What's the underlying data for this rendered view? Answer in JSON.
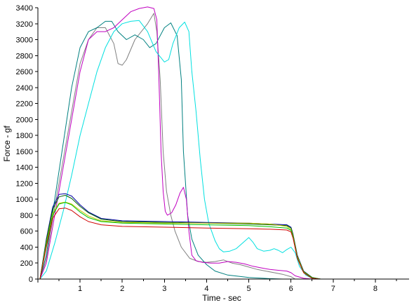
{
  "chart_data": {
    "type": "line",
    "title": "",
    "xlabel": "Time - sec",
    "ylabel": "Force - gf",
    "xlim": [
      0,
      8.8
    ],
    "ylim": [
      0,
      3400
    ],
    "xticks": [
      1,
      2,
      3,
      4,
      5,
      6,
      7,
      8
    ],
    "yticks": [
      0,
      200,
      400,
      600,
      800,
      1000,
      1200,
      1400,
      1600,
      1800,
      2000,
      2200,
      2400,
      2600,
      2800,
      3000,
      3200,
      3400
    ],
    "grid": false,
    "series": [
      {
        "color": "#808080",
        "points": [
          [
            0.05,
            0
          ],
          [
            0.2,
            250
          ],
          [
            0.4,
            900
          ],
          [
            0.6,
            1500
          ],
          [
            0.8,
            2100
          ],
          [
            1.0,
            2700
          ],
          [
            1.2,
            3000
          ],
          [
            1.4,
            3150
          ],
          [
            1.6,
            3150
          ],
          [
            1.8,
            2950
          ],
          [
            1.9,
            2700
          ],
          [
            2.0,
            2680
          ],
          [
            2.1,
            2750
          ],
          [
            2.3,
            3000
          ],
          [
            2.6,
            3200
          ],
          [
            2.75,
            3330
          ],
          [
            2.82,
            3100
          ],
          [
            2.9,
            2500
          ],
          [
            2.97,
            1600
          ],
          [
            3.05,
            1100
          ],
          [
            3.15,
            800
          ],
          [
            3.25,
            600
          ],
          [
            3.4,
            400
          ],
          [
            3.6,
            260
          ],
          [
            3.8,
            220
          ],
          [
            4.0,
            210
          ],
          [
            4.2,
            220
          ],
          [
            4.4,
            240
          ],
          [
            4.6,
            200
          ],
          [
            4.8,
            180
          ],
          [
            5.0,
            150
          ],
          [
            5.2,
            120
          ],
          [
            5.4,
            100
          ],
          [
            5.6,
            80
          ],
          [
            5.8,
            60
          ],
          [
            6.0,
            30
          ],
          [
            6.1,
            0
          ]
        ]
      },
      {
        "color": "#008080",
        "points": [
          [
            0.05,
            0
          ],
          [
            0.2,
            300
          ],
          [
            0.4,
            1000
          ],
          [
            0.6,
            1700
          ],
          [
            0.8,
            2400
          ],
          [
            1.0,
            2900
          ],
          [
            1.2,
            3100
          ],
          [
            1.4,
            3150
          ],
          [
            1.6,
            3230
          ],
          [
            1.75,
            3230
          ],
          [
            1.9,
            3100
          ],
          [
            2.1,
            3000
          ],
          [
            2.3,
            3060
          ],
          [
            2.5,
            3000
          ],
          [
            2.65,
            2900
          ],
          [
            2.8,
            2950
          ],
          [
            3.0,
            3150
          ],
          [
            3.15,
            3210
          ],
          [
            3.3,
            3050
          ],
          [
            3.4,
            2500
          ],
          [
            3.45,
            1600
          ],
          [
            3.55,
            800
          ],
          [
            3.65,
            500
          ],
          [
            3.8,
            300
          ],
          [
            4.0,
            180
          ],
          [
            4.2,
            100
          ],
          [
            4.5,
            50
          ],
          [
            5.0,
            20
          ],
          [
            5.5,
            5
          ],
          [
            5.8,
            0
          ]
        ]
      },
      {
        "color": "#C000C0",
        "points": [
          [
            0.05,
            0
          ],
          [
            0.2,
            200
          ],
          [
            0.4,
            800
          ],
          [
            0.6,
            1400
          ],
          [
            0.8,
            2000
          ],
          [
            1.0,
            2600
          ],
          [
            1.2,
            3000
          ],
          [
            1.4,
            3100
          ],
          [
            1.6,
            3100
          ],
          [
            1.8,
            3150
          ],
          [
            2.0,
            3250
          ],
          [
            2.2,
            3350
          ],
          [
            2.4,
            3390
          ],
          [
            2.6,
            3410
          ],
          [
            2.75,
            3390
          ],
          [
            2.82,
            3250
          ],
          [
            2.87,
            2500
          ],
          [
            2.92,
            1600
          ],
          [
            2.97,
            1100
          ],
          [
            3.02,
            850
          ],
          [
            3.07,
            800
          ],
          [
            3.17,
            830
          ],
          [
            3.27,
            930
          ],
          [
            3.37,
            1080
          ],
          [
            3.45,
            1150
          ],
          [
            3.52,
            1000
          ],
          [
            3.58,
            600
          ],
          [
            3.65,
            300
          ],
          [
            3.75,
            230
          ],
          [
            3.9,
            210
          ],
          [
            4.1,
            200
          ],
          [
            4.3,
            200
          ],
          [
            4.5,
            220
          ],
          [
            4.7,
            210
          ],
          [
            4.9,
            190
          ],
          [
            5.1,
            160
          ],
          [
            5.3,
            140
          ],
          [
            5.5,
            120
          ],
          [
            5.7,
            110
          ],
          [
            5.9,
            100
          ],
          [
            6.0,
            80
          ],
          [
            6.1,
            40
          ],
          [
            6.3,
            10
          ],
          [
            6.5,
            0
          ]
        ]
      },
      {
        "color": "#00E0E0",
        "points": [
          [
            0.05,
            0
          ],
          [
            0.2,
            100
          ],
          [
            0.4,
            450
          ],
          [
            0.6,
            850
          ],
          [
            0.8,
            1300
          ],
          [
            1.0,
            1800
          ],
          [
            1.2,
            2200
          ],
          [
            1.4,
            2600
          ],
          [
            1.6,
            2900
          ],
          [
            1.8,
            3100
          ],
          [
            2.0,
            3200
          ],
          [
            2.2,
            3230
          ],
          [
            2.4,
            3240
          ],
          [
            2.6,
            3100
          ],
          [
            2.8,
            2850
          ],
          [
            3.0,
            2720
          ],
          [
            3.1,
            2750
          ],
          [
            3.2,
            2950
          ],
          [
            3.35,
            3150
          ],
          [
            3.48,
            3220
          ],
          [
            3.58,
            3100
          ],
          [
            3.65,
            2600
          ],
          [
            3.75,
            2100
          ],
          [
            3.85,
            1500
          ],
          [
            3.95,
            1000
          ],
          [
            4.05,
            700
          ],
          [
            4.2,
            480
          ],
          [
            4.3,
            380
          ],
          [
            4.4,
            340
          ],
          [
            4.55,
            350
          ],
          [
            4.7,
            380
          ],
          [
            4.85,
            450
          ],
          [
            5.0,
            520
          ],
          [
            5.1,
            460
          ],
          [
            5.2,
            380
          ],
          [
            5.35,
            350
          ],
          [
            5.5,
            360
          ],
          [
            5.6,
            380
          ],
          [
            5.7,
            360
          ],
          [
            5.8,
            330
          ],
          [
            5.9,
            370
          ],
          [
            6.0,
            400
          ],
          [
            6.1,
            330
          ],
          [
            6.2,
            160
          ],
          [
            6.35,
            50
          ],
          [
            6.5,
            10
          ],
          [
            6.7,
            0
          ]
        ]
      },
      {
        "color": "#0000A0",
        "points": [
          [
            0.05,
            0
          ],
          [
            0.2,
            500
          ],
          [
            0.35,
            900
          ],
          [
            0.5,
            1060
          ],
          [
            0.65,
            1070
          ],
          [
            0.8,
            1040
          ],
          [
            1.0,
            930
          ],
          [
            1.2,
            840
          ],
          [
            1.5,
            760
          ],
          [
            2.0,
            730
          ],
          [
            3.0,
            720
          ],
          [
            4.0,
            710
          ],
          [
            5.0,
            700
          ],
          [
            5.5,
            690
          ],
          [
            5.9,
            680
          ],
          [
            6.0,
            650
          ],
          [
            6.05,
            560
          ],
          [
            6.15,
            300
          ],
          [
            6.3,
            100
          ],
          [
            6.5,
            20
          ],
          [
            6.7,
            0
          ]
        ]
      },
      {
        "color": "#006400",
        "points": [
          [
            0.05,
            0
          ],
          [
            0.2,
            480
          ],
          [
            0.35,
            870
          ],
          [
            0.5,
            1030
          ],
          [
            0.65,
            1050
          ],
          [
            0.8,
            1010
          ],
          [
            1.0,
            910
          ],
          [
            1.2,
            830
          ],
          [
            1.5,
            750
          ],
          [
            2.0,
            720
          ],
          [
            3.0,
            710
          ],
          [
            4.0,
            700
          ],
          [
            5.0,
            690
          ],
          [
            5.5,
            680
          ],
          [
            5.9,
            670
          ],
          [
            6.0,
            640
          ],
          [
            6.05,
            550
          ],
          [
            6.15,
            290
          ],
          [
            6.3,
            95
          ],
          [
            6.5,
            20
          ],
          [
            6.7,
            0
          ]
        ]
      },
      {
        "color": "#C8C800",
        "points": [
          [
            0.05,
            0
          ],
          [
            0.2,
            450
          ],
          [
            0.35,
            820
          ],
          [
            0.5,
            950
          ],
          [
            0.65,
            965
          ],
          [
            0.8,
            940
          ],
          [
            1.0,
            860
          ],
          [
            1.2,
            790
          ],
          [
            1.5,
            730
          ],
          [
            2.0,
            710
          ],
          [
            3.0,
            700
          ],
          [
            4.0,
            700
          ],
          [
            5.0,
            700
          ],
          [
            5.5,
            690
          ],
          [
            5.9,
            660
          ],
          [
            6.0,
            620
          ],
          [
            6.05,
            540
          ],
          [
            6.15,
            280
          ],
          [
            6.3,
            90
          ],
          [
            6.5,
            15
          ],
          [
            6.7,
            0
          ]
        ]
      },
      {
        "color": "#00C000",
        "points": [
          [
            0.05,
            0
          ],
          [
            0.2,
            430
          ],
          [
            0.35,
            800
          ],
          [
            0.5,
            940
          ],
          [
            0.65,
            960
          ],
          [
            0.8,
            930
          ],
          [
            1.0,
            840
          ],
          [
            1.2,
            770
          ],
          [
            1.5,
            720
          ],
          [
            2.0,
            700
          ],
          [
            3.0,
            690
          ],
          [
            4.0,
            680
          ],
          [
            5.0,
            670
          ],
          [
            5.5,
            655
          ],
          [
            5.9,
            640
          ],
          [
            6.0,
            610
          ],
          [
            6.05,
            530
          ],
          [
            6.15,
            270
          ],
          [
            6.3,
            85
          ],
          [
            6.5,
            15
          ],
          [
            6.7,
            0
          ]
        ]
      },
      {
        "color": "#D00000",
        "points": [
          [
            0.05,
            0
          ],
          [
            0.2,
            400
          ],
          [
            0.35,
            760
          ],
          [
            0.5,
            880
          ],
          [
            0.65,
            890
          ],
          [
            0.8,
            860
          ],
          [
            1.0,
            780
          ],
          [
            1.2,
            720
          ],
          [
            1.5,
            680
          ],
          [
            2.0,
            660
          ],
          [
            3.0,
            650
          ],
          [
            4.0,
            640
          ],
          [
            5.0,
            630
          ],
          [
            5.5,
            625
          ],
          [
            5.9,
            615
          ],
          [
            6.0,
            590
          ],
          [
            6.05,
            510
          ],
          [
            6.15,
            260
          ],
          [
            6.3,
            80
          ],
          [
            6.5,
            10
          ],
          [
            6.7,
            0
          ]
        ]
      }
    ]
  }
}
